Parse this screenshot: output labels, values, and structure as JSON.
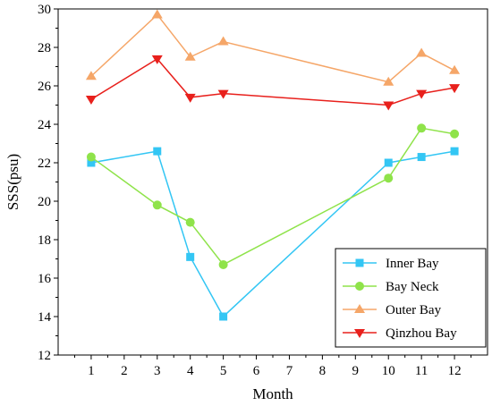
{
  "chart_data": {
    "type": "line",
    "title": "",
    "xlabel": "Month",
    "ylabel": "SSS(psu)",
    "xlim": [
      0,
      13
    ],
    "ylim": [
      12,
      30
    ],
    "x_ticks": [
      1,
      2,
      3,
      4,
      5,
      6,
      7,
      8,
      9,
      10,
      11,
      12
    ],
    "y_ticks": [
      12,
      14,
      16,
      18,
      20,
      22,
      24,
      26,
      28,
      30
    ],
    "grid": false,
    "legend_position": "bottom-right",
    "series": [
      {
        "name": "Inner Bay",
        "color": "#33c6f4",
        "marker": "square",
        "x": [
          1,
          3,
          4,
          5,
          10,
          11,
          12
        ],
        "values": [
          22.0,
          22.6,
          17.1,
          14.0,
          22.0,
          22.3,
          22.6
        ]
      },
      {
        "name": "Bay Neck",
        "color": "#8fe34a",
        "marker": "circle",
        "x": [
          1,
          3,
          4,
          5,
          10,
          11,
          12
        ],
        "values": [
          22.3,
          19.8,
          18.9,
          16.7,
          21.2,
          23.8,
          23.5
        ]
      },
      {
        "name": "Outer Bay",
        "color": "#f5a668",
        "marker": "triangle-up",
        "x": [
          1,
          3,
          4,
          5,
          10,
          11,
          12
        ],
        "values": [
          26.5,
          29.7,
          27.5,
          28.3,
          26.2,
          27.7,
          26.8
        ]
      },
      {
        "name": "Qinzhou Bay",
        "color": "#e8201c",
        "marker": "triangle-down",
        "x": [
          1,
          3,
          4,
          5,
          10,
          11,
          12
        ],
        "values": [
          25.3,
          27.4,
          25.4,
          25.6,
          25.0,
          25.6,
          25.9
        ]
      }
    ]
  }
}
